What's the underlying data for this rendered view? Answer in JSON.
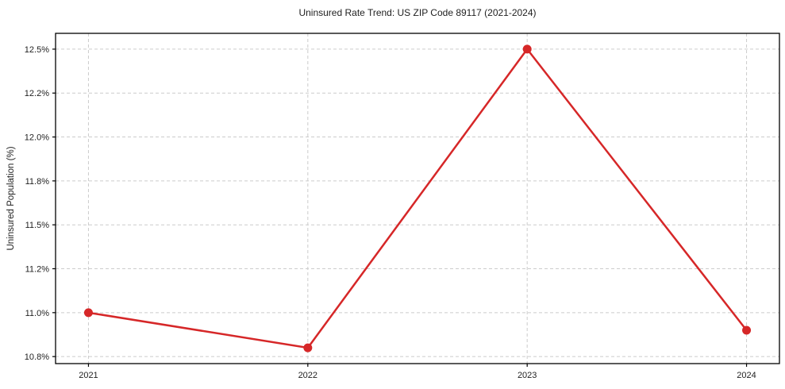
{
  "chart_data": {
    "type": "line",
    "title": "Uninsured Rate Trend: US ZIP Code 89117 (2021-2024)",
    "xlabel": "",
    "ylabel": "Uninsured Population (%)",
    "x": [
      2021,
      2022,
      2023,
      2024
    ],
    "values": [
      11.0,
      10.8,
      12.5,
      10.9
    ],
    "xticks": {
      "positions": [
        2021,
        2022,
        2023,
        2024
      ],
      "labels": [
        "2021",
        "2022",
        "2023",
        "2024"
      ]
    },
    "yticks": {
      "positions": [
        10.75,
        11.0,
        11.25,
        11.5,
        11.75,
        12.0,
        12.25,
        12.5
      ],
      "labels": [
        "10.8%",
        "11.0%",
        "11.2%",
        "11.5%",
        "11.8%",
        "12.0%",
        "12.2%",
        "12.5%"
      ]
    },
    "xlim": [
      2020.85,
      2024.15
    ],
    "ylim": [
      10.71,
      12.59
    ],
    "grid": true,
    "grid_style": "dashed",
    "legend": "none",
    "marker": "o",
    "colors": {
      "line": "#d62728",
      "marker": "#d62728",
      "grid": "#cccccc",
      "axis": "#000000",
      "text": "#1f1f1f",
      "background": "#ffffff"
    }
  }
}
